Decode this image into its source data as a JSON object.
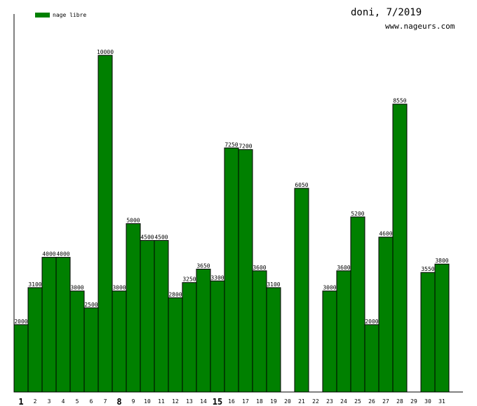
{
  "header": {
    "title": "doni, 7/2019",
    "site": "www.nageurs.com"
  },
  "chart_data": {
    "type": "bar",
    "categories": [
      "1",
      "2",
      "3",
      "4",
      "5",
      "6",
      "7",
      "8",
      "9",
      "10",
      "11",
      "12",
      "13",
      "14",
      "15",
      "16",
      "17",
      "18",
      "19",
      "20",
      "21",
      "22",
      "23",
      "24",
      "25",
      "26",
      "27",
      "28",
      "29",
      "30",
      "31"
    ],
    "emphasized_categories": [
      "1",
      "8",
      "15"
    ],
    "series": [
      {
        "name": "nage libre",
        "color": "#008000",
        "values": [
          2000,
          3100,
          4000,
          4000,
          3000,
          2500,
          10000,
          3000,
          5000,
          4500,
          4500,
          2800,
          3250,
          3650,
          3300,
          7250,
          7200,
          3600,
          3100,
          null,
          6050,
          null,
          3000,
          3600,
          5200,
          2000,
          4600,
          8550,
          null,
          3550,
          3800
        ]
      }
    ],
    "ylim": [
      0,
      10000
    ],
    "grid": false,
    "legend_position": "top-left"
  }
}
